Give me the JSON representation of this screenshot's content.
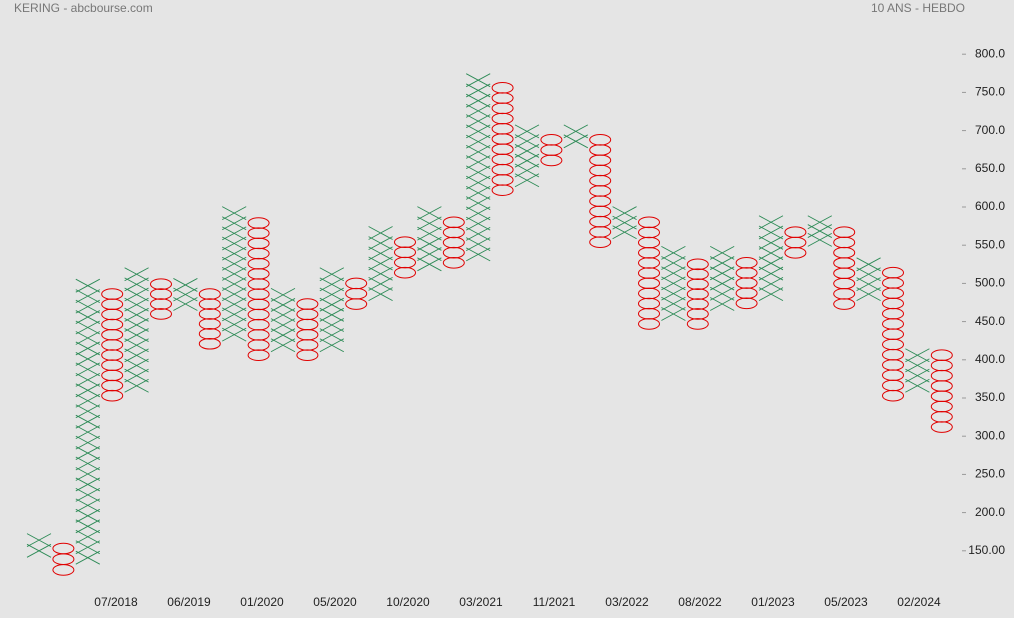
{
  "chart_data": {
    "type": "point-figure",
    "title": "KERING - abcbourse.com",
    "subtitle": "10 ANS - HEBDO",
    "box_size": 13.5,
    "x_up_color": "#2e8b57",
    "o_down_color": "#e00000",
    "ylim": [
      100,
      850
    ],
    "yticks": [
      {
        "value": 800,
        "label": "800.0"
      },
      {
        "value": 750,
        "label": "750.0"
      },
      {
        "value": 700,
        "label": "700.0"
      },
      {
        "value": 650,
        "label": "650.0"
      },
      {
        "value": 600,
        "label": "600.0"
      },
      {
        "value": 550,
        "label": "550.0"
      },
      {
        "value": 500,
        "label": "500.0"
      },
      {
        "value": 450,
        "label": "450.0"
      },
      {
        "value": 400,
        "label": "400.0"
      },
      {
        "value": 350,
        "label": "350.0"
      },
      {
        "value": 300,
        "label": "300.0"
      },
      {
        "value": 250,
        "label": "250.0"
      },
      {
        "value": 200,
        "label": "200.0"
      },
      {
        "value": 150,
        "label": "150.00"
      }
    ],
    "date_labels": [
      "07/2018",
      "06/2019",
      "01/2020",
      "05/2020",
      "10/2020",
      "03/2021",
      "11/2021",
      "03/2022",
      "08/2022",
      "01/2023",
      "05/2023",
      "02/2024"
    ],
    "columns": [
      {
        "type": "X",
        "high": 164,
        "low": 150
      },
      {
        "type": "O",
        "high": 153,
        "low": 125
      },
      {
        "type": "X",
        "high": 497,
        "low": 141
      },
      {
        "type": "O",
        "high": 486,
        "low": 353
      },
      {
        "type": "X",
        "high": 512,
        "low": 366
      },
      {
        "type": "O",
        "high": 499,
        "low": 460
      },
      {
        "type": "X",
        "high": 498,
        "low": 473
      },
      {
        "type": "O",
        "high": 486,
        "low": 421
      },
      {
        "type": "X",
        "high": 592,
        "low": 433
      },
      {
        "type": "O",
        "high": 579,
        "low": 406
      },
      {
        "type": "X",
        "high": 485,
        "low": 419
      },
      {
        "type": "O",
        "high": 473,
        "low": 406
      },
      {
        "type": "X",
        "high": 512,
        "low": 419
      },
      {
        "type": "O",
        "high": 500,
        "low": 473
      },
      {
        "type": "X",
        "high": 566,
        "low": 486
      },
      {
        "type": "O",
        "high": 554,
        "low": 514
      },
      {
        "type": "X",
        "high": 592,
        "low": 525
      },
      {
        "type": "O",
        "high": 580,
        "low": 527
      },
      {
        "type": "X",
        "high": 766,
        "low": 538
      },
      {
        "type": "O",
        "high": 756,
        "low": 622
      },
      {
        "type": "X",
        "high": 699,
        "low": 635
      },
      {
        "type": "O",
        "high": 688,
        "low": 661
      },
      {
        "type": "X",
        "high": 699,
        "low": 686
      },
      {
        "type": "O",
        "high": 688,
        "low": 554
      },
      {
        "type": "X",
        "high": 592,
        "low": 567
      },
      {
        "type": "O",
        "high": 580,
        "low": 447
      },
      {
        "type": "X",
        "high": 540,
        "low": 460
      },
      {
        "type": "O",
        "high": 525,
        "low": 447
      },
      {
        "type": "X",
        "high": 540,
        "low": 473
      },
      {
        "type": "O",
        "high": 527,
        "low": 474
      },
      {
        "type": "X",
        "high": 580,
        "low": 486
      },
      {
        "type": "O",
        "high": 567,
        "low": 540
      },
      {
        "type": "X",
        "high": 580,
        "low": 557
      },
      {
        "type": "O",
        "high": 567,
        "low": 473
      },
      {
        "type": "X",
        "high": 525,
        "low": 486
      },
      {
        "type": "O",
        "high": 514,
        "low": 353
      },
      {
        "type": "X",
        "high": 406,
        "low": 366
      },
      {
        "type": "O",
        "high": 406,
        "low": 312
      }
    ]
  }
}
